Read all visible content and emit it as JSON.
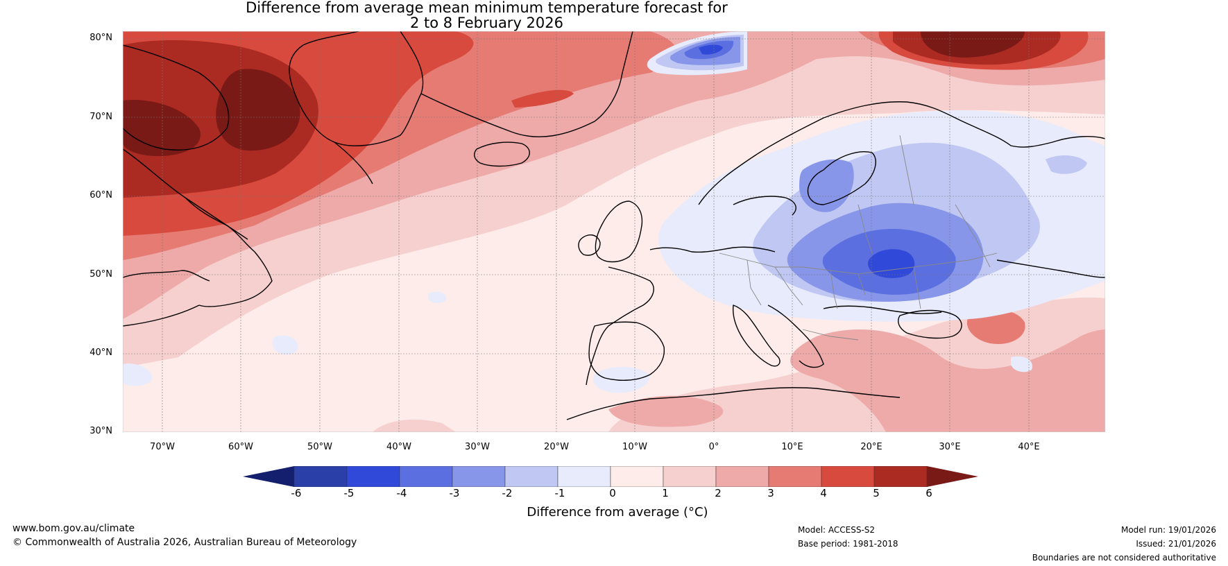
{
  "title": {
    "line1": "Difference from average mean minimum temperature forecast for",
    "line2": "2 to 8 February 2026"
  },
  "map": {
    "lat_labels": [
      "80°N",
      "70°N",
      "60°N",
      "50°N",
      "40°N",
      "30°N"
    ],
    "lon_labels": [
      "70°W",
      "60°W",
      "50°W",
      "40°W",
      "30°W",
      "20°W",
      "10°W",
      "0°",
      "10°E",
      "20°E",
      "30°E",
      "40°E"
    ],
    "lon_range": [
      -75,
      50
    ],
    "lat_range": [
      30,
      81
    ]
  },
  "colorbar": {
    "ticks": [
      "-6",
      "-5",
      "-4",
      "-3",
      "-2",
      "-1",
      "0",
      "1",
      "2",
      "3",
      "4",
      "5",
      "6"
    ],
    "title": "Difference from average (°C)",
    "colors": [
      "#14206e",
      "#2a3fa8",
      "#3149d9",
      "#5b6fe0",
      "#8796e8",
      "#bfc7f2",
      "#e8ebfb",
      "#fdecea",
      "#f6cfcf",
      "#edaaa8",
      "#e57b73",
      "#d84a3d",
      "#ab2a22",
      "#7a1a16"
    ]
  },
  "footer": {
    "website": "www.bom.gov.au/climate",
    "copyright": "© Commonwealth of Australia 2026, Australian Bureau of Meteorology",
    "model": "Model: ACCESS-S2",
    "base_period": "Base period: 1981-2018",
    "model_run": "Model run: 19/01/2026",
    "issued": "Issued: 21/01/2026",
    "disclaimer": "Boundaries are not considered authoritative"
  }
}
